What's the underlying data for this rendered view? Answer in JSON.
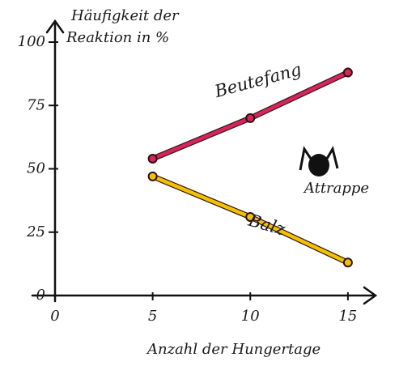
{
  "chart_data": {
    "type": "line",
    "y_label": [
      "Häufigkeit der",
      "Reaktion in %"
    ],
    "x_label": "Anzahl der Hungertage",
    "annotation": "Attrappe",
    "x": [
      5,
      10,
      15
    ],
    "series": [
      {
        "name": "Beutefang",
        "color": "#d8245c",
        "values": [
          54,
          70,
          88
        ]
      },
      {
        "name": "Balz",
        "color": "#f2c200",
        "values": [
          47,
          31,
          13
        ]
      }
    ],
    "xlim": [
      0,
      16
    ],
    "ylim": [
      0,
      100
    ],
    "xticks": [
      0,
      5,
      10,
      15
    ],
    "yticks": [
      0,
      25,
      50,
      75,
      100
    ]
  }
}
